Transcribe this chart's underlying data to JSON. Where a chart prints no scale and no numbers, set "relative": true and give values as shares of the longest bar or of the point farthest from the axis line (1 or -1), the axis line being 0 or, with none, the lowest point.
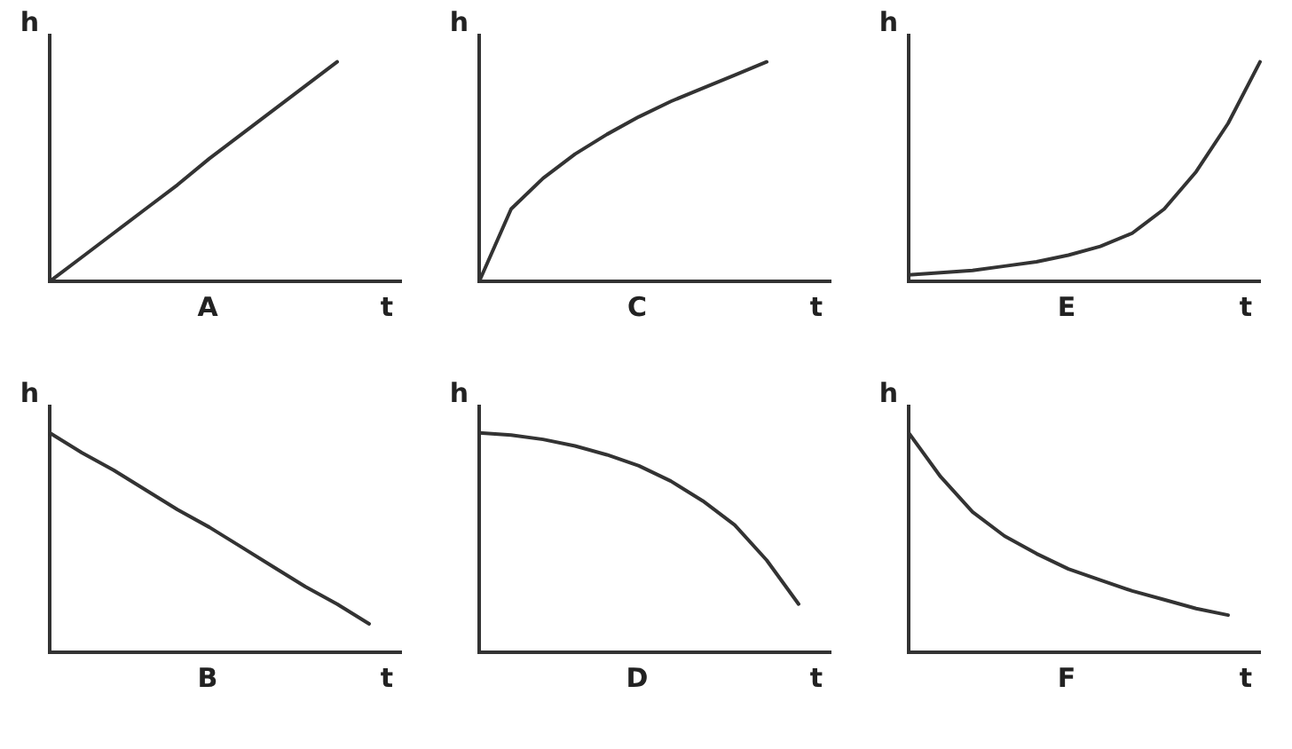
{
  "chart_data": [
    {
      "type": "line",
      "relative": true,
      "grid": false,
      "legend": false,
      "marker": "none",
      "title": "A",
      "xlabel": "t",
      "ylabel": "h",
      "categories": [
        null,
        null,
        null,
        null,
        null,
        null,
        null,
        null,
        null,
        null,
        null,
        null
      ],
      "series": [
        {
          "color": "#333333",
          "values": [
            0,
            0.11,
            0.22,
            0.33,
            0.44,
            0.56,
            0.67,
            0.78,
            0.89,
            1,
            null,
            null
          ]
        }
      ]
    },
    {
      "type": "line",
      "relative": true,
      "grid": false,
      "legend": false,
      "marker": "none",
      "title": "C",
      "xlabel": "t",
      "ylabel": "h",
      "categories": [
        null,
        null,
        null,
        null,
        null,
        null,
        null,
        null,
        null,
        null,
        null,
        null
      ],
      "series": [
        {
          "color": "#333333",
          "values": [
            0,
            0.33,
            0.47,
            0.58,
            0.67,
            0.75,
            0.82,
            0.88,
            0.94,
            1,
            null,
            null
          ]
        }
      ]
    },
    {
      "type": "line",
      "relative": true,
      "grid": false,
      "legend": false,
      "marker": "none",
      "title": "E",
      "xlabel": "t",
      "ylabel": "h",
      "categories": [
        null,
        null,
        null,
        null,
        null,
        null,
        null,
        null,
        null,
        null,
        null,
        null
      ],
      "series": [
        {
          "color": "#333333",
          "values": [
            0.03,
            0.04,
            0.05,
            0.07,
            0.09,
            0.12,
            0.16,
            0.22,
            0.33,
            0.5,
            0.72,
            1
          ]
        }
      ]
    },
    {
      "type": "line",
      "relative": true,
      "grid": false,
      "legend": false,
      "marker": "none",
      "title": "B",
      "xlabel": "t",
      "ylabel": "h",
      "categories": [
        null,
        null,
        null,
        null,
        null,
        null,
        null,
        null,
        null,
        null,
        null,
        null
      ],
      "series": [
        {
          "color": "#333333",
          "values": [
            1,
            0.91,
            0.83,
            0.74,
            0.65,
            0.57,
            0.48,
            0.39,
            0.3,
            0.22,
            0.13,
            null
          ]
        }
      ]
    },
    {
      "type": "line",
      "relative": true,
      "grid": false,
      "legend": false,
      "marker": "none",
      "title": "D",
      "xlabel": "t",
      "ylabel": "h",
      "categories": [
        null,
        null,
        null,
        null,
        null,
        null,
        null,
        null,
        null,
        null,
        null,
        null
      ],
      "series": [
        {
          "color": "#333333",
          "values": [
            1,
            0.99,
            0.97,
            0.94,
            0.9,
            0.85,
            0.78,
            0.69,
            0.58,
            0.42,
            0.22,
            null
          ]
        }
      ]
    },
    {
      "type": "line",
      "relative": true,
      "grid": false,
      "legend": false,
      "marker": "none",
      "title": "F",
      "xlabel": "t",
      "ylabel": "h",
      "categories": [
        null,
        null,
        null,
        null,
        null,
        null,
        null,
        null,
        null,
        null,
        null,
        null
      ],
      "series": [
        {
          "color": "#333333",
          "values": [
            1,
            0.8,
            0.64,
            0.53,
            0.45,
            0.38,
            0.33,
            0.28,
            0.24,
            0.2,
            0.17,
            null
          ]
        }
      ]
    }
  ]
}
